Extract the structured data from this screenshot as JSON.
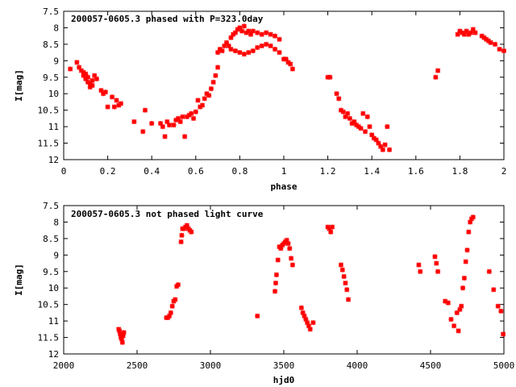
{
  "chart_data": [
    {
      "type": "scatter",
      "title": "200057-0605.3 phased with P=323.0day",
      "xlabel": "phase",
      "ylabel": "I[mag]",
      "xlim": [
        0,
        2
      ],
      "ylim": [
        7.5,
        12
      ],
      "y_inverted": true,
      "grid": false,
      "marker_color": "#ff0000",
      "marker_shape": "cross",
      "x_ticks": [
        "0",
        "0.2",
        "0.4",
        "0.6",
        "0.8",
        "1",
        "1.2",
        "1.4",
        "1.6",
        "1.8",
        "2"
      ],
      "y_ticks": [
        "7.5",
        "8",
        "8.5",
        "9",
        "9.5",
        "10",
        "10.5",
        "11",
        "11.5",
        "12"
      ],
      "series": [
        {
          "points": [
            [
              0.03,
              9.25
            ],
            [
              0.06,
              9.05
            ],
            [
              0.07,
              9.2
            ],
            [
              0.08,
              9.3
            ],
            [
              0.09,
              9.35
            ],
            [
              0.09,
              9.45
            ],
            [
              0.1,
              9.4
            ],
            [
              0.1,
              9.55
            ],
            [
              0.11,
              9.5
            ],
            [
              0.11,
              9.65
            ],
            [
              0.12,
              9.7
            ],
            [
              0.12,
              9.8
            ],
            [
              0.13,
              9.6
            ],
            [
              0.13,
              9.75
            ],
            [
              0.14,
              9.45
            ],
            [
              0.15,
              9.55
            ],
            [
              0.17,
              9.9
            ],
            [
              0.18,
              10.0
            ],
            [
              0.19,
              9.95
            ],
            [
              0.2,
              10.4
            ],
            [
              0.22,
              10.1
            ],
            [
              0.23,
              10.4
            ],
            [
              0.24,
              10.2
            ],
            [
              0.25,
              10.35
            ],
            [
              0.26,
              10.3
            ],
            [
              0.32,
              10.85
            ],
            [
              0.36,
              11.15
            ],
            [
              0.37,
              10.5
            ],
            [
              0.4,
              10.9
            ],
            [
              0.44,
              10.9
            ],
            [
              0.45,
              11.0
            ],
            [
              0.46,
              11.3
            ],
            [
              0.47,
              10.85
            ],
            [
              0.48,
              10.95
            ],
            [
              0.5,
              10.95
            ],
            [
              0.51,
              10.8
            ],
            [
              0.52,
              10.75
            ],
            [
              0.53,
              10.85
            ],
            [
              0.54,
              10.7
            ],
            [
              0.55,
              11.3
            ],
            [
              0.56,
              10.7
            ],
            [
              0.57,
              10.65
            ],
            [
              0.58,
              10.6
            ],
            [
              0.59,
              10.75
            ],
            [
              0.6,
              10.55
            ],
            [
              0.61,
              10.2
            ],
            [
              0.62,
              10.4
            ],
            [
              0.63,
              10.35
            ],
            [
              0.64,
              10.15
            ],
            [
              0.65,
              10.0
            ],
            [
              0.66,
              10.05
            ],
            [
              0.67,
              9.85
            ],
            [
              0.68,
              9.65
            ],
            [
              0.69,
              9.45
            ],
            [
              0.7,
              9.2
            ],
            [
              0.7,
              8.75
            ],
            [
              0.71,
              8.65
            ],
            [
              0.72,
              8.7
            ],
            [
              0.73,
              8.55
            ],
            [
              0.74,
              8.45
            ],
            [
              0.75,
              8.55
            ],
            [
              0.76,
              8.3
            ],
            [
              0.77,
              8.2
            ],
            [
              0.78,
              8.15
            ],
            [
              0.79,
              8.05
            ],
            [
              0.8,
              8.0
            ],
            [
              0.81,
              8.1
            ],
            [
              0.82,
              7.95
            ],
            [
              0.83,
              8.15
            ],
            [
              0.84,
              8.1
            ],
            [
              0.85,
              8.2
            ],
            [
              0.86,
              8.1
            ],
            [
              0.88,
              8.15
            ],
            [
              0.9,
              8.2
            ],
            [
              0.92,
              8.15
            ],
            [
              0.94,
              8.2
            ],
            [
              0.96,
              8.25
            ],
            [
              0.98,
              8.35
            ],
            [
              0.76,
              8.65
            ],
            [
              0.78,
              8.7
            ],
            [
              0.8,
              8.75
            ],
            [
              0.82,
              8.8
            ],
            [
              0.84,
              8.75
            ],
            [
              0.86,
              8.7
            ],
            [
              0.88,
              8.6
            ],
            [
              0.9,
              8.55
            ],
            [
              0.92,
              8.5
            ],
            [
              0.94,
              8.55
            ],
            [
              0.96,
              8.65
            ],
            [
              0.98,
              8.75
            ],
            [
              1.0,
              8.95
            ],
            [
              1.01,
              8.95
            ],
            [
              1.02,
              9.05
            ],
            [
              1.03,
              9.1
            ],
            [
              1.04,
              9.25
            ],
            [
              1.2,
              9.5
            ],
            [
              1.21,
              9.5
            ],
            [
              1.24,
              10.0
            ],
            [
              1.25,
              10.15
            ],
            [
              1.26,
              10.5
            ],
            [
              1.27,
              10.55
            ],
            [
              1.28,
              10.7
            ],
            [
              1.29,
              10.6
            ],
            [
              1.3,
              10.75
            ],
            [
              1.31,
              10.9
            ],
            [
              1.32,
              10.85
            ],
            [
              1.33,
              10.95
            ],
            [
              1.34,
              11.0
            ],
            [
              1.35,
              11.05
            ],
            [
              1.36,
              10.6
            ],
            [
              1.37,
              11.15
            ],
            [
              1.38,
              10.7
            ],
            [
              1.39,
              11.0
            ],
            [
              1.4,
              11.25
            ],
            [
              1.41,
              11.35
            ],
            [
              1.42,
              11.4
            ],
            [
              1.43,
              11.5
            ],
            [
              1.44,
              11.6
            ],
            [
              1.45,
              11.7
            ],
            [
              1.46,
              11.55
            ],
            [
              1.47,
              11.0
            ],
            [
              1.48,
              11.7
            ],
            [
              1.69,
              9.5
            ],
            [
              1.7,
              9.3
            ],
            [
              1.79,
              8.2
            ],
            [
              1.8,
              8.1
            ],
            [
              1.81,
              8.15
            ],
            [
              1.82,
              8.2
            ],
            [
              1.83,
              8.1
            ],
            [
              1.84,
              8.2
            ],
            [
              1.85,
              8.15
            ],
            [
              1.86,
              8.05
            ],
            [
              1.87,
              8.15
            ],
            [
              1.9,
              8.25
            ],
            [
              1.91,
              8.3
            ],
            [
              1.92,
              8.35
            ],
            [
              1.93,
              8.4
            ],
            [
              1.94,
              8.45
            ],
            [
              1.96,
              8.5
            ],
            [
              1.98,
              8.65
            ],
            [
              2.0,
              8.7
            ]
          ]
        }
      ]
    },
    {
      "type": "scatter",
      "title": "200057-0605.3 not phased light curve",
      "xlabel": "hjd0",
      "ylabel": "I[mag]",
      "xlim": [
        2000,
        5000
      ],
      "ylim": [
        7.5,
        12
      ],
      "y_inverted": true,
      "grid": false,
      "marker_color": "#ff0000",
      "marker_shape": "cross",
      "x_ticks": [
        "2000",
        "2500",
        "3000",
        "3500",
        "4000",
        "4500",
        "5000"
      ],
      "y_ticks": [
        "7.5",
        "8",
        "8.5",
        "9",
        "9.5",
        "10",
        "10.5",
        "11",
        "11.5",
        "12"
      ],
      "series": [
        {
          "points": [
            [
              2375,
              11.25
            ],
            [
              2380,
              11.3
            ],
            [
              2385,
              11.4
            ],
            [
              2390,
              11.5
            ],
            [
              2395,
              11.55
            ],
            [
              2400,
              11.65
            ],
            [
              2405,
              11.45
            ],
            [
              2410,
              11.35
            ],
            [
              2700,
              10.9
            ],
            [
              2710,
              10.9
            ],
            [
              2720,
              10.85
            ],
            [
              2730,
              10.75
            ],
            [
              2740,
              10.55
            ],
            [
              2750,
              10.4
            ],
            [
              2760,
              10.35
            ],
            [
              2770,
              9.95
            ],
            [
              2780,
              9.9
            ],
            [
              2800,
              8.6
            ],
            [
              2805,
              8.4
            ],
            [
              2810,
              8.2
            ],
            [
              2820,
              8.2
            ],
            [
              2830,
              8.15
            ],
            [
              2840,
              8.1
            ],
            [
              2850,
              8.2
            ],
            [
              2860,
              8.25
            ],
            [
              2870,
              8.3
            ],
            [
              3320,
              10.85
            ],
            [
              3440,
              10.1
            ],
            [
              3445,
              9.85
            ],
            [
              3450,
              9.6
            ],
            [
              3460,
              9.15
            ],
            [
              3470,
              8.75
            ],
            [
              3480,
              8.8
            ],
            [
              3490,
              8.7
            ],
            [
              3500,
              8.65
            ],
            [
              3510,
              8.6
            ],
            [
              3520,
              8.55
            ],
            [
              3530,
              8.65
            ],
            [
              3540,
              8.8
            ],
            [
              3550,
              9.1
            ],
            [
              3560,
              9.3
            ],
            [
              3620,
              10.6
            ],
            [
              3630,
              10.75
            ],
            [
              3640,
              10.85
            ],
            [
              3650,
              10.95
            ],
            [
              3660,
              11.05
            ],
            [
              3670,
              11.15
            ],
            [
              3680,
              11.25
            ],
            [
              3700,
              11.05
            ],
            [
              3800,
              8.15
            ],
            [
              3810,
              8.2
            ],
            [
              3820,
              8.3
            ],
            [
              3830,
              8.15
            ],
            [
              3890,
              9.3
            ],
            [
              3900,
              9.45
            ],
            [
              3910,
              9.65
            ],
            [
              3920,
              9.85
            ],
            [
              3930,
              10.05
            ],
            [
              3940,
              10.35
            ],
            [
              4420,
              9.3
            ],
            [
              4430,
              9.5
            ],
            [
              4530,
              9.05
            ],
            [
              4540,
              9.25
            ],
            [
              4550,
              9.5
            ],
            [
              4600,
              10.4
            ],
            [
              4620,
              10.45
            ],
            [
              4640,
              10.95
            ],
            [
              4660,
              11.15
            ],
            [
              4680,
              10.75
            ],
            [
              4690,
              11.3
            ],
            [
              4700,
              10.65
            ],
            [
              4710,
              10.55
            ],
            [
              4720,
              10.0
            ],
            [
              4730,
              9.7
            ],
            [
              4740,
              9.2
            ],
            [
              4750,
              8.85
            ],
            [
              4760,
              8.3
            ],
            [
              4770,
              8.0
            ],
            [
              4780,
              7.9
            ],
            [
              4790,
              7.85
            ],
            [
              4900,
              9.5
            ],
            [
              4930,
              10.05
            ],
            [
              4960,
              10.55
            ],
            [
              4980,
              10.7
            ],
            [
              4995,
              11.4
            ]
          ]
        }
      ]
    }
  ]
}
